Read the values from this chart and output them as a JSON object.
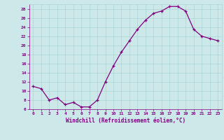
{
  "x": [
    0,
    1,
    2,
    3,
    4,
    5,
    6,
    7,
    8,
    9,
    10,
    11,
    12,
    13,
    14,
    15,
    16,
    17,
    18,
    19,
    20,
    21,
    22,
    23
  ],
  "y": [
    11,
    10.5,
    8,
    8.5,
    7,
    7.5,
    6.5,
    6.5,
    8,
    12,
    15.5,
    18.5,
    21,
    23.5,
    25.5,
    27,
    27.5,
    28.5,
    28.5,
    27.5,
    23.5,
    22,
    21.5,
    21
  ],
  "xlabel": "Windchill (Refroidissement éolien,°C)",
  "xlim": [
    -0.5,
    23.5
  ],
  "ylim": [
    6,
    29
  ],
  "yticks": [
    6,
    8,
    10,
    12,
    14,
    16,
    18,
    20,
    22,
    24,
    26,
    28
  ],
  "xticks": [
    0,
    1,
    2,
    3,
    4,
    5,
    6,
    7,
    8,
    9,
    10,
    11,
    12,
    13,
    14,
    15,
    16,
    17,
    18,
    19,
    20,
    21,
    22,
    23
  ],
  "line_color": "#800080",
  "marker": "+",
  "bg_color": "#cce8e8",
  "grid_color": "#aad4d4",
  "xlabel_color": "#800080",
  "tick_color": "#800080"
}
